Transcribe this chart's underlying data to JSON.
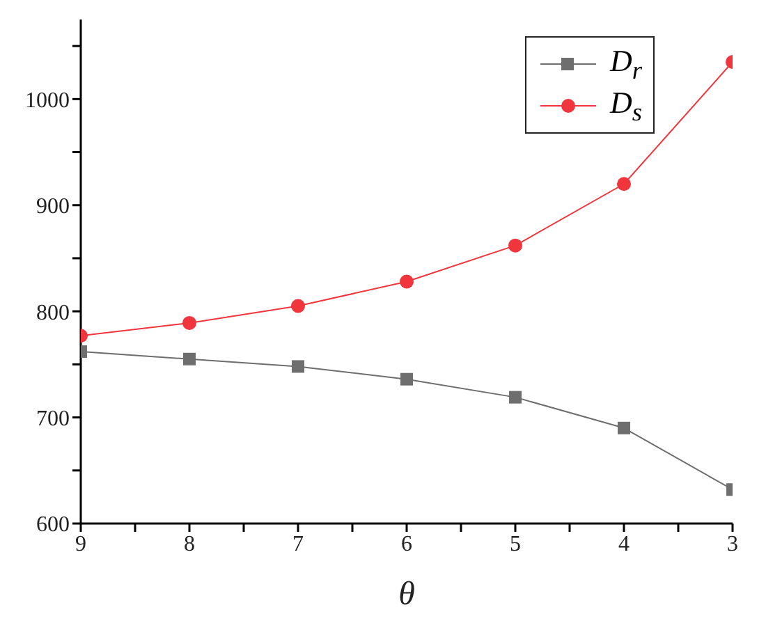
{
  "chart_data": {
    "type": "line",
    "xlabel": "θ",
    "x": [
      9,
      8,
      7,
      6,
      5,
      4,
      3
    ],
    "xlim": [
      9,
      3
    ],
    "xticks": [
      9,
      {
        "value": 8.5,
        "label": null
      },
      8,
      {
        "value": 7.5,
        "label": null
      },
      7,
      {
        "value": 6.5,
        "label": null
      },
      6,
      {
        "value": 5.5,
        "label": null
      },
      5,
      {
        "value": 4.5,
        "label": null
      },
      4,
      {
        "value": 3.5,
        "label": null
      },
      3
    ],
    "ylim": [
      600,
      1075
    ],
    "yticks": [
      600,
      {
        "value": 650,
        "label": null
      },
      700,
      {
        "value": 750,
        "label": null
      },
      800,
      {
        "value": 850,
        "label": null
      },
      900,
      {
        "value": 950,
        "label": null
      },
      1000,
      {
        "value": 1050,
        "label": null
      }
    ],
    "series": [
      {
        "name": "D$_{r}$",
        "color": "#6e6e6e",
        "marker": "square",
        "values": [
          762,
          755,
          748,
          736,
          719,
          690,
          632
        ]
      },
      {
        "name": "D$_{s}$",
        "color": "#f0353d",
        "marker": "circle",
        "values": [
          777,
          789,
          805,
          828,
          862,
          920,
          1035
        ]
      }
    ],
    "legend": "top right",
    "grid": false
  }
}
